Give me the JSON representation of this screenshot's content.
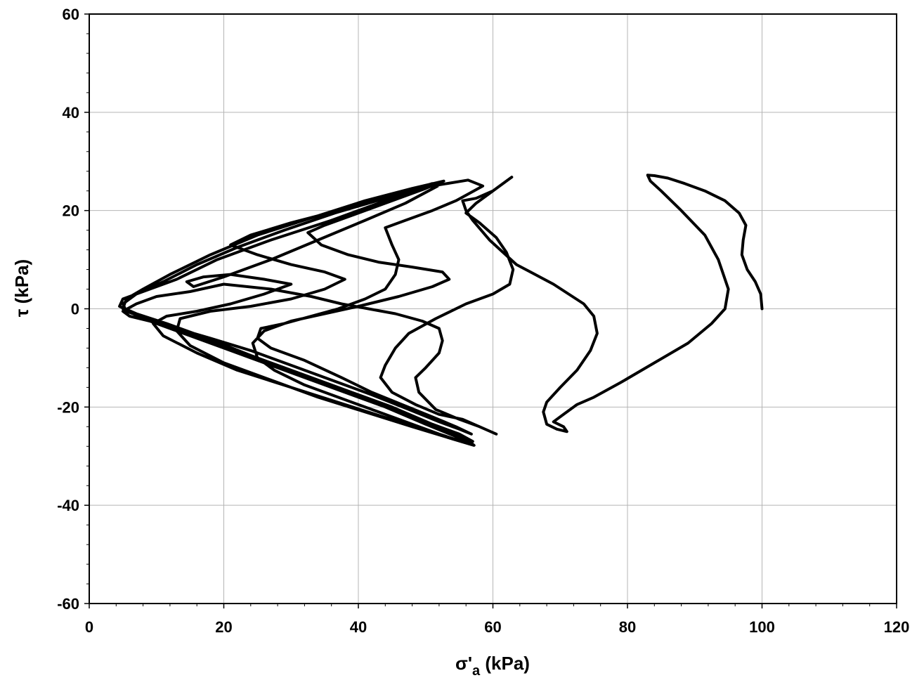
{
  "chart_data": {
    "type": "line",
    "xlabel": "σ'a (kPa)",
    "xlabel_main": "σ'",
    "xlabel_sub": "a",
    "xlabel_unit": " (kPa)",
    "ylabel": "τ  (kPa)",
    "xlim": [
      0,
      120
    ],
    "ylim": [
      -60,
      60
    ],
    "x_ticks": [
      "0",
      "20",
      "40",
      "60",
      "80",
      "100",
      "120"
    ],
    "y_ticks": [
      "60",
      "40",
      "20",
      "0",
      "-20",
      "-40",
      "-60"
    ],
    "grid": true,
    "line_color": "#000000",
    "series": [
      {
        "values": [
          [
            100.0,
            0.0
          ],
          [
            99.8,
            3.0
          ],
          [
            99.0,
            5.5
          ],
          [
            97.8,
            8.0
          ],
          [
            97.0,
            11.0
          ],
          [
            97.2,
            14.0
          ],
          [
            97.6,
            17.0
          ],
          [
            96.6,
            19.5
          ],
          [
            94.5,
            22.0
          ],
          [
            91.5,
            24.0
          ],
          [
            88.5,
            25.5
          ],
          [
            86.0,
            26.6
          ],
          [
            84.0,
            27.1
          ],
          [
            83.0,
            27.2
          ],
          [
            83.4,
            26.0
          ],
          [
            85.0,
            24.0
          ],
          [
            88.0,
            20.0
          ],
          [
            91.5,
            15.0
          ],
          [
            93.5,
            10.0
          ],
          [
            95.0,
            4.0
          ],
          [
            94.5,
            0.0
          ],
          [
            92.5,
            -3.0
          ],
          [
            89.0,
            -7.0
          ],
          [
            84.0,
            -11.0
          ],
          [
            79.0,
            -15.0
          ],
          [
            75.0,
            -18.0
          ],
          [
            72.5,
            -19.5
          ],
          [
            70.5,
            -21.5
          ],
          [
            69.0,
            -23.0
          ],
          [
            70.5,
            -24.0
          ],
          [
            71.0,
            -25.0
          ],
          [
            69.5,
            -24.5
          ],
          [
            68.0,
            -23.5
          ],
          [
            67.5,
            -21.0
          ],
          [
            68.0,
            -19.0
          ],
          [
            70.0,
            -16.0
          ],
          [
            72.5,
            -12.5
          ],
          [
            74.5,
            -8.5
          ],
          [
            75.5,
            -5.0
          ],
          [
            75.0,
            -1.5
          ],
          [
            73.5,
            1.0
          ],
          [
            69.0,
            5.0
          ],
          [
            63.5,
            9.0
          ],
          [
            59.5,
            14.0
          ],
          [
            57.0,
            18.0
          ],
          [
            56.0,
            20.0
          ],
          [
            55.5,
            22.0
          ],
          [
            57.5,
            22.5
          ],
          [
            60.0,
            24.0
          ],
          [
            62.8,
            26.8
          ],
          [
            60.0,
            24.0
          ],
          [
            57.5,
            21.5
          ],
          [
            56.0,
            19.5
          ],
          [
            58.0,
            17.5
          ],
          [
            60.5,
            14.5
          ],
          [
            62.0,
            11.5
          ],
          [
            63.0,
            8.0
          ],
          [
            62.5,
            5.0
          ],
          [
            60.0,
            3.0
          ],
          [
            56.0,
            1.0
          ],
          [
            51.5,
            -2.0
          ],
          [
            47.5,
            -5.0
          ],
          [
            45.5,
            -8.0
          ],
          [
            44.0,
            -11.5
          ],
          [
            43.3,
            -14.0
          ],
          [
            45.0,
            -17.0
          ],
          [
            48.5,
            -19.5
          ],
          [
            52.0,
            -21.5
          ],
          [
            55.5,
            -22.5
          ],
          [
            58.0,
            -24.0
          ],
          [
            60.5,
            -25.5
          ],
          [
            58.0,
            -24.0
          ],
          [
            55.0,
            -22.5
          ],
          [
            51.5,
            -20.5
          ],
          [
            49.0,
            -17.0
          ],
          [
            48.5,
            -14.0
          ],
          [
            50.0,
            -12.0
          ],
          [
            52.0,
            -9.0
          ],
          [
            52.5,
            -6.5
          ],
          [
            52.0,
            -4.0
          ],
          [
            49.5,
            -2.5
          ],
          [
            45.5,
            -1.0
          ],
          [
            41.5,
            0.0
          ],
          [
            37.5,
            1.0
          ],
          [
            33.0,
            2.5
          ],
          [
            27.0,
            4.0
          ],
          [
            20.0,
            5.0
          ],
          [
            15.0,
            3.5
          ],
          [
            10.0,
            2.5
          ],
          [
            7.0,
            1.0
          ],
          [
            5.0,
            -0.5
          ],
          [
            6.0,
            -1.5
          ],
          [
            9.0,
            -2.5
          ],
          [
            13.0,
            -4.0
          ],
          [
            18.0,
            -6.0
          ],
          [
            24.0,
            -8.5
          ],
          [
            30.0,
            -11.5
          ],
          [
            36.0,
            -14.5
          ],
          [
            42.0,
            -17.5
          ],
          [
            47.5,
            -20.5
          ],
          [
            52.0,
            -23.0
          ],
          [
            55.0,
            -24.5
          ],
          [
            56.8,
            -25.5
          ],
          [
            54.5,
            -24.0
          ],
          [
            51.0,
            -22.0
          ],
          [
            46.5,
            -19.5
          ],
          [
            42.0,
            -17.0
          ],
          [
            37.5,
            -14.0
          ],
          [
            32.0,
            -10.5
          ],
          [
            27.0,
            -8.0
          ],
          [
            25.0,
            -6.0
          ],
          [
            25.5,
            -4.0
          ],
          [
            29.0,
            -3.0
          ],
          [
            33.0,
            -1.5
          ],
          [
            37.0,
            0.0
          ],
          [
            41.0,
            2.0
          ],
          [
            44.0,
            4.0
          ],
          [
            45.5,
            7.0
          ],
          [
            46.0,
            10.0
          ],
          [
            45.0,
            13.0
          ],
          [
            44.0,
            16.5
          ],
          [
            47.0,
            18.0
          ],
          [
            51.0,
            20.0
          ],
          [
            54.5,
            22.0
          ],
          [
            56.5,
            23.5
          ],
          [
            58.5,
            25.0
          ],
          [
            56.3,
            26.2
          ],
          [
            51.0,
            25.0
          ],
          [
            44.0,
            22.0
          ],
          [
            36.0,
            18.0
          ],
          [
            27.0,
            14.0
          ],
          [
            19.0,
            10.0
          ],
          [
            13.0,
            6.0
          ],
          [
            8.0,
            3.5
          ],
          [
            5.0,
            2.0
          ],
          [
            4.5,
            0.5
          ],
          [
            7.0,
            -1.0
          ],
          [
            11.5,
            -3.0
          ],
          [
            17.5,
            -6.0
          ],
          [
            24.0,
            -9.5
          ],
          [
            31.0,
            -13.0
          ],
          [
            38.0,
            -16.5
          ],
          [
            45.0,
            -20.0
          ],
          [
            51.0,
            -23.5
          ],
          [
            55.0,
            -25.5
          ],
          [
            57.0,
            -27.0
          ],
          [
            56.5,
            -27.5
          ],
          [
            52.0,
            -25.5
          ],
          [
            47.0,
            -23.0
          ],
          [
            42.0,
            -20.5
          ],
          [
            37.0,
            -18.0
          ],
          [
            32.0,
            -15.5
          ],
          [
            27.5,
            -12.5
          ],
          [
            25.0,
            -10.0
          ],
          [
            24.3,
            -7.0
          ],
          [
            26.0,
            -4.5
          ],
          [
            30.0,
            -2.5
          ],
          [
            35.0,
            -1.0
          ],
          [
            40.0,
            0.5
          ],
          [
            46.0,
            2.5
          ],
          [
            51.0,
            4.5
          ],
          [
            53.5,
            6.0
          ],
          [
            52.5,
            7.5
          ],
          [
            48.0,
            8.5
          ],
          [
            43.0,
            9.5
          ],
          [
            38.5,
            11.0
          ],
          [
            34.5,
            13.0
          ],
          [
            32.5,
            15.5
          ],
          [
            35.0,
            17.0
          ],
          [
            40.0,
            19.5
          ],
          [
            45.0,
            22.0
          ],
          [
            50.0,
            24.5
          ],
          [
            52.7,
            26.0
          ],
          [
            48.0,
            24.5
          ],
          [
            41.0,
            22.0
          ],
          [
            33.0,
            18.5
          ],
          [
            25.0,
            15.0
          ],
          [
            18.0,
            11.0
          ],
          [
            12.0,
            7.0
          ],
          [
            8.0,
            4.0
          ],
          [
            5.5,
            2.0
          ],
          [
            5.0,
            0.0
          ],
          [
            8.0,
            -2.0
          ],
          [
            13.0,
            -4.5
          ],
          [
            20.0,
            -8.0
          ],
          [
            28.0,
            -12.0
          ],
          [
            36.0,
            -16.0
          ],
          [
            44.0,
            -20.0
          ],
          [
            50.0,
            -23.5
          ],
          [
            54.0,
            -25.5
          ],
          [
            56.5,
            -27.0
          ],
          [
            57.2,
            -27.8
          ],
          [
            54.0,
            -26.5
          ],
          [
            48.0,
            -24.0
          ],
          [
            41.0,
            -21.0
          ],
          [
            34.0,
            -18.0
          ],
          [
            27.0,
            -14.5
          ],
          [
            20.0,
            -11.0
          ],
          [
            15.0,
            -7.5
          ],
          [
            13.0,
            -4.5
          ],
          [
            13.5,
            -2.0
          ],
          [
            18.0,
            -0.5
          ],
          [
            24.0,
            0.5
          ],
          [
            30.0,
            2.0
          ],
          [
            35.0,
            4.0
          ],
          [
            38.0,
            6.0
          ],
          [
            35.0,
            7.5
          ],
          [
            30.0,
            9.0
          ],
          [
            25.0,
            11.0
          ],
          [
            21.0,
            13.0
          ],
          [
            24.0,
            15.0
          ],
          [
            30.0,
            17.5
          ],
          [
            37.0,
            20.0
          ],
          [
            44.0,
            22.5
          ],
          [
            51.5,
            25.5
          ],
          [
            51.0,
            25.5
          ],
          [
            44.0,
            22.5
          ],
          [
            36.5,
            19.5
          ],
          [
            29.0,
            16.0
          ],
          [
            22.0,
            12.5
          ],
          [
            16.0,
            9.0
          ],
          [
            11.0,
            5.5
          ],
          [
            7.0,
            3.0
          ],
          [
            5.0,
            1.0
          ],
          [
            5.5,
            -0.5
          ],
          [
            9.5,
            -2.5
          ],
          [
            15.5,
            -5.5
          ],
          [
            22.5,
            -9.0
          ],
          [
            30.0,
            -13.0
          ],
          [
            37.5,
            -16.5
          ],
          [
            44.5,
            -20.0
          ],
          [
            50.0,
            -23.5
          ],
          [
            54.5,
            -26.0
          ],
          [
            56.8,
            -27.5
          ],
          [
            53.0,
            -26.0
          ],
          [
            46.0,
            -23.0
          ],
          [
            38.0,
            -19.5
          ],
          [
            30.0,
            -16.0
          ],
          [
            22.0,
            -12.5
          ],
          [
            16.0,
            -9.0
          ],
          [
            11.0,
            -5.5
          ],
          [
            9.5,
            -3.0
          ],
          [
            11.5,
            -1.5
          ],
          [
            16.0,
            -0.5
          ],
          [
            21.0,
            1.0
          ],
          [
            26.0,
            3.0
          ],
          [
            30.0,
            5.0
          ],
          [
            26.0,
            6.0
          ],
          [
            21.0,
            7.0
          ],
          [
            17.0,
            6.5
          ],
          [
            14.5,
            5.5
          ],
          [
            15.5,
            4.5
          ],
          [
            20.0,
            6.5
          ],
          [
            27.0,
            10.0
          ],
          [
            34.0,
            14.0
          ],
          [
            41.0,
            18.0
          ],
          [
            47.0,
            21.5
          ],
          [
            51.8,
            25.0
          ]
        ]
      }
    ]
  }
}
